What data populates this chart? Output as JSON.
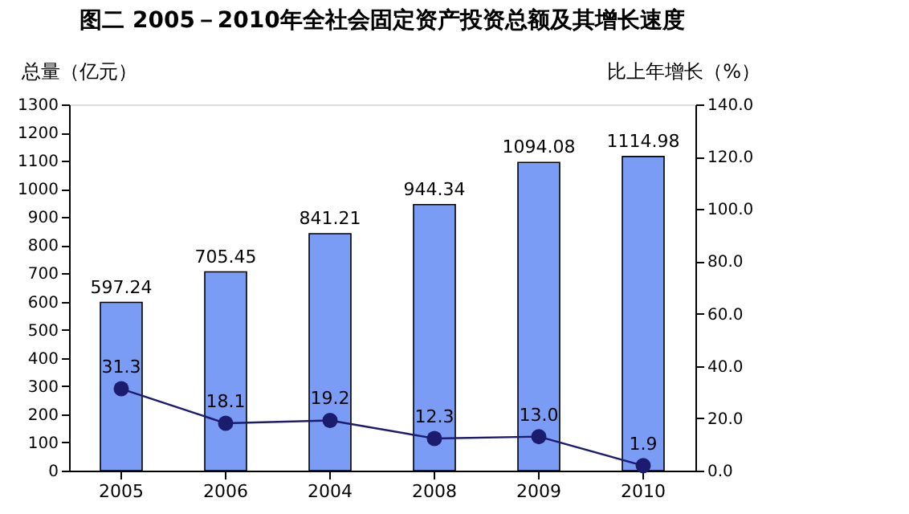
{
  "chart_data": {
    "type": "bar",
    "title": "图二    2005－2010年全社会固定资产投资总额及其增长速度",
    "categories": [
      "2005",
      "2006",
      "2004",
      "2008",
      "2009",
      "2010"
    ],
    "ylabel": "总量（亿元）",
    "y2label": "比上年增长（%）",
    "series": [
      {
        "color": "#7b9cf5",
        "values": [
          597.24,
          705.45,
          841.21,
          944.34,
          1094.08,
          1114.98
        ],
        "value_labels": [
          "597.24",
          "705.45",
          "841.21",
          "944.34",
          "1094.08",
          "1114.98"
        ]
      },
      {
        "type": "line",
        "axis": "y2",
        "color": "#1c1c6e",
        "marker": "circle",
        "values": [
          31.3,
          18.1,
          19.2,
          12.3,
          13.0,
          1.9
        ],
        "value_labels": [
          "31.3",
          "18.1",
          "19.2",
          "12.3",
          "13.0",
          "1.9"
        ]
      }
    ],
    "ylim": [
      0,
      1300
    ],
    "yticks": [
      0,
      100,
      200,
      300,
      400,
      500,
      600,
      700,
      800,
      900,
      1000,
      1100,
      1200,
      1300
    ],
    "y2lim": [
      0,
      140
    ],
    "y2ticks": [
      {
        "value": 0,
        "label": "0.0"
      },
      {
        "value": 20,
        "label": "20.0"
      },
      {
        "value": 40,
        "label": "40.0"
      },
      {
        "value": 60,
        "label": "60.0"
      },
      {
        "value": 80,
        "label": "80.0"
      },
      {
        "value": 100,
        "label": "100.0"
      },
      {
        "value": 120,
        "label": "120.0"
      },
      {
        "value": 140,
        "label": "140.0"
      }
    ],
    "grid": false
  }
}
